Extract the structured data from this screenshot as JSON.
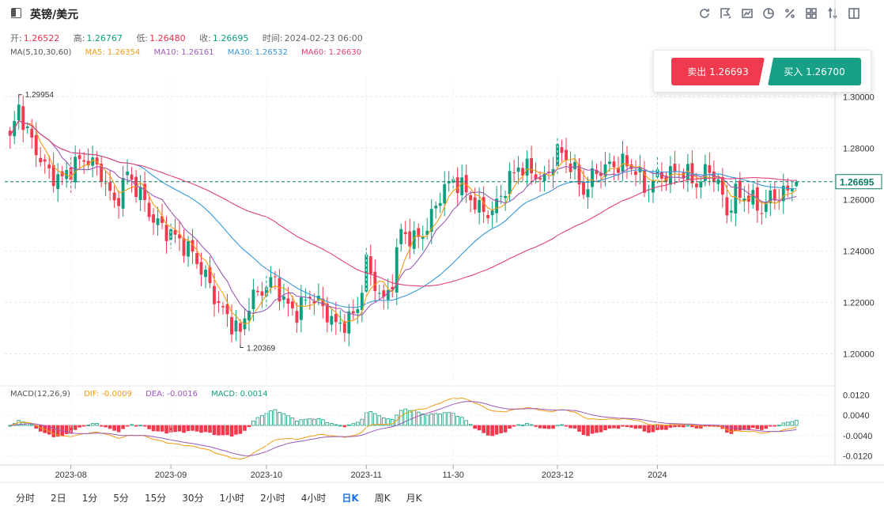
{
  "header": {
    "symbol": "英镑/美元",
    "tools": [
      "refresh-icon",
      "draw-icon",
      "indicator-icon",
      "pie-icon",
      "percent-icon",
      "layout-icon",
      "compare-icon",
      "fullscreen-icon"
    ]
  },
  "ohlc": {
    "open_label": "开:",
    "open": "1.26522",
    "high_label": "高:",
    "high": "1.26767",
    "low_label": "低:",
    "low": "1.26480",
    "close_label": "收:",
    "close": "1.26695",
    "time_label": "时间:",
    "time": "2024-02-23 06:00"
  },
  "ma_legend": {
    "title": "MA(5,10,30,60)",
    "ma5": "MA5: 1.26354",
    "ma10": "MA10: 1.26161",
    "ma30": "MA30: 1.26532",
    "ma60": "MA60: 1.26630"
  },
  "trade": {
    "sell": "卖出 1.26693",
    "buy": "买入 1.26700"
  },
  "macd_legend": {
    "title": "MACD(12,26,9)",
    "dif": "DIF: -0.0009",
    "dea": "DEA: -0.0016",
    "macd": "MACD: 0.0014"
  },
  "periods": [
    "分时",
    "2日",
    "1分",
    "5分",
    "15分",
    "30分",
    "1小时",
    "2小时",
    "4小时",
    "日K",
    "周K",
    "月K"
  ],
  "active_period": "日K",
  "colors": {
    "up": "#0e9f7e",
    "down": "#f03a4d",
    "ma5": "#f39c12",
    "ma10": "#9b59b6",
    "ma30": "#3498db",
    "ma60": "#e0407a"
  },
  "chart_data": {
    "type": "candlestick",
    "price_axis": {
      "ticks": [
        "1.30000",
        "1.28000",
        "1.26000",
        "1.24000",
        "1.22000",
        "1.20000"
      ],
      "range": [
        1.19,
        1.305
      ]
    },
    "macd_axis": {
      "ticks": [
        "0.0120",
        "0.0040",
        "-0.0040",
        "-0.0120"
      ],
      "range": [
        -0.0155,
        0.0155
      ]
    },
    "x_labels": [
      "2023-08",
      "2023-09",
      "2023-10",
      "2023-11",
      "11-30",
      "2023-12",
      "2024"
    ],
    "current_price": "1.26695",
    "max_label": "1.29954",
    "min_label": "1.20369",
    "anchors": [
      [
        0,
        1.283
      ],
      [
        2,
        1.296
      ],
      [
        4,
        1.286
      ],
      [
        6,
        1.279
      ],
      [
        9,
        1.27
      ],
      [
        12,
        1.268
      ],
      [
        15,
        1.274
      ],
      [
        18,
        1.276
      ],
      [
        21,
        1.27
      ],
      [
        24,
        1.258
      ],
      [
        27,
        1.27
      ],
      [
        30,
        1.262
      ],
      [
        33,
        1.252
      ],
      [
        36,
        1.248
      ],
      [
        39,
        1.244
      ],
      [
        42,
        1.239
      ],
      [
        45,
        1.23
      ],
      [
        48,
        1.219
      ],
      [
        51,
        1.212
      ],
      [
        53,
        1.208
      ],
      [
        55,
        1.22
      ],
      [
        58,
        1.225
      ],
      [
        61,
        1.229
      ],
      [
        63,
        1.22
      ],
      [
        66,
        1.216
      ],
      [
        69,
        1.223
      ],
      [
        72,
        1.218
      ],
      [
        75,
        1.211
      ],
      [
        78,
        1.213
      ],
      [
        80,
        1.218
      ],
      [
        82,
        1.235
      ],
      [
        84,
        1.227
      ],
      [
        86,
        1.22
      ],
      [
        88,
        1.229
      ],
      [
        90,
        1.248
      ],
      [
        93,
        1.244
      ],
      [
        96,
        1.249
      ],
      [
        99,
        1.262
      ],
      [
        102,
        1.268
      ],
      [
        105,
        1.263
      ],
      [
        108,
        1.256
      ],
      [
        111,
        1.255
      ],
      [
        114,
        1.265
      ],
      [
        117,
        1.273
      ],
      [
        120,
        1.271
      ],
      [
        123,
        1.267
      ],
      [
        126,
        1.279
      ],
      [
        129,
        1.274
      ],
      [
        132,
        1.263
      ],
      [
        135,
        1.271
      ],
      [
        138,
        1.273
      ],
      [
        141,
        1.274
      ],
      [
        144,
        1.272
      ],
      [
        146,
        1.264
      ],
      [
        149,
        1.269
      ],
      [
        152,
        1.27
      ],
      [
        155,
        1.271
      ],
      [
        158,
        1.266
      ],
      [
        161,
        1.272
      ],
      [
        163,
        1.266
      ],
      [
        165,
        1.255
      ],
      [
        167,
        1.262
      ],
      [
        170,
        1.261
      ],
      [
        173,
        1.256
      ],
      [
        175,
        1.261
      ],
      [
        178,
        1.262
      ],
      [
        181,
        1.267
      ]
    ]
  }
}
